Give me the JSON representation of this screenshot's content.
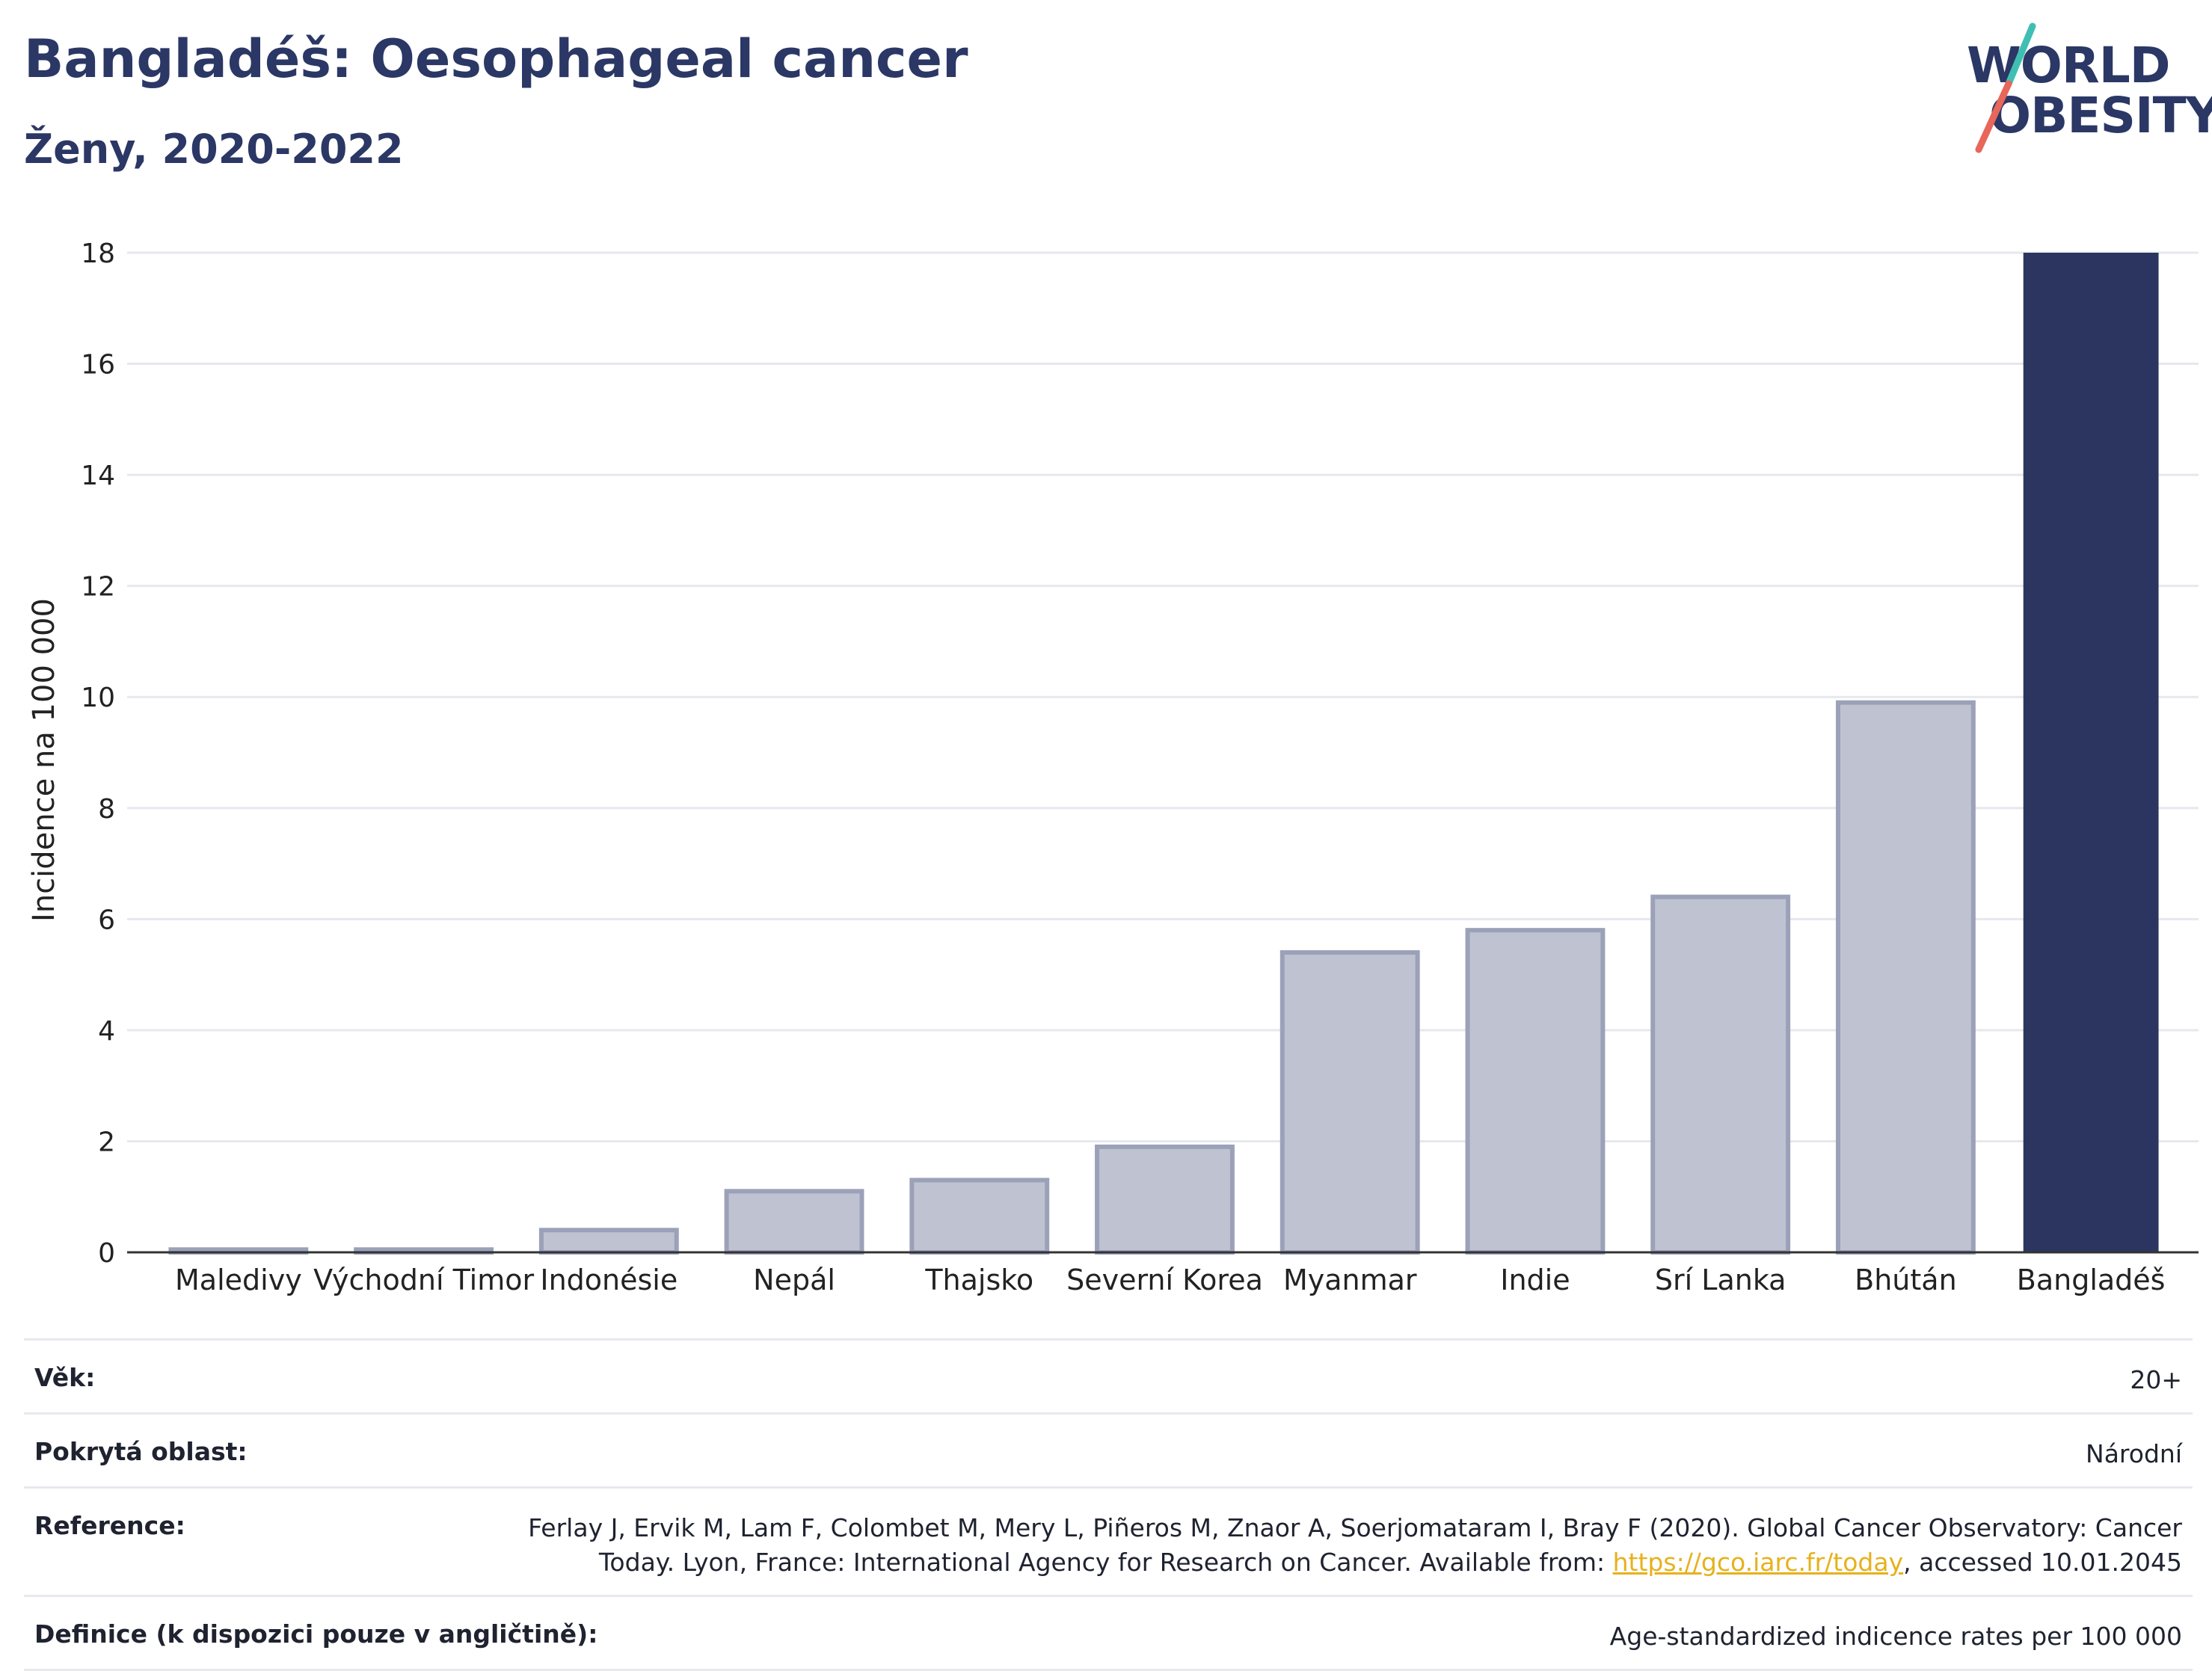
{
  "header": {
    "title": "Bangladéš: Oesophageal cancer",
    "subtitle": "Ženy, 2020-2022"
  },
  "logo": {
    "line1": "WORLD",
    "line2": "OBESITY",
    "colors": {
      "text": "#2b3765",
      "slash_top": "#3fbfb3",
      "slash_bottom": "#e8665a"
    }
  },
  "chart_data": {
    "type": "bar",
    "title": "",
    "xlabel": "",
    "ylabel": "Incidence na 100 000",
    "ylim": [
      0,
      18
    ],
    "yticks": [
      0,
      2,
      4,
      6,
      8,
      10,
      12,
      14,
      16,
      18
    ],
    "grid": true,
    "categories": [
      "Maledivy",
      "Východní Timor",
      "Indonésie",
      "Nepál",
      "Thajsko",
      "Severní Korea",
      "Myanmar",
      "Indie",
      "Srí Lanka",
      "Bhútán",
      "Bangladéš"
    ],
    "values": [
      0.05,
      0.05,
      0.4,
      1.1,
      1.3,
      1.9,
      5.4,
      5.8,
      6.4,
      9.9,
      18.0
    ],
    "highlight": "Bangladéš",
    "colors": {
      "bar": "#bfc3d1",
      "bar_border": "#9ba1b8",
      "highlight": "#2b3560",
      "grid": "#e6e8ee",
      "axis": "#333333"
    }
  },
  "meta": [
    {
      "label": "Věk:",
      "value": "20+"
    },
    {
      "label": "Pokrytá oblast:",
      "value": "Národní"
    },
    {
      "label": "Reference:",
      "value_before": "Ferlay J, Ervik M, Lam F, Colombet M, Mery L, Piñeros M, Znaor A, Soerjomataram I, Bray F (2020). Global Cancer Observatory: Cancer Today. Lyon, France: International Agency for Research on Cancer. Available from: ",
      "link": "https://gco.iarc.fr/today",
      "value_after": ", accessed 10.01.2045"
    },
    {
      "label": "Definice (k dispozici pouze v angličtině):",
      "value": "Age-standardized indicence rates per 100 000"
    }
  ]
}
